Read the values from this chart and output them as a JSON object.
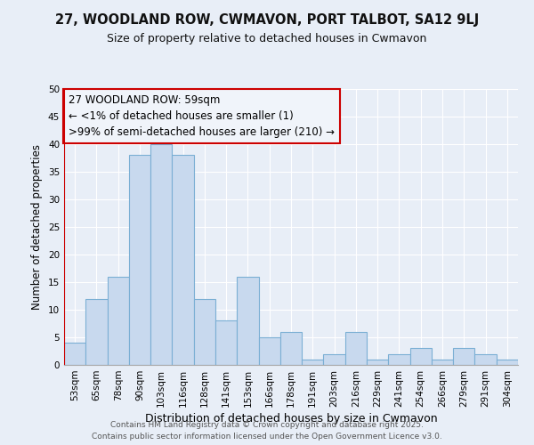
{
  "title1": "27, WOODLAND ROW, CWMAVON, PORT TALBOT, SA12 9LJ",
  "title2": "Size of property relative to detached houses in Cwmavon",
  "xlabel": "Distribution of detached houses by size in Cwmavon",
  "ylabel": "Number of detached properties",
  "categories": [
    "53sqm",
    "65sqm",
    "78sqm",
    "90sqm",
    "103sqm",
    "116sqm",
    "128sqm",
    "141sqm",
    "153sqm",
    "166sqm",
    "178sqm",
    "191sqm",
    "203sqm",
    "216sqm",
    "229sqm",
    "241sqm",
    "254sqm",
    "266sqm",
    "279sqm",
    "291sqm",
    "304sqm"
  ],
  "values": [
    4,
    12,
    16,
    38,
    40,
    38,
    12,
    8,
    16,
    5,
    6,
    1,
    2,
    6,
    1,
    2,
    3,
    1,
    3,
    2,
    1
  ],
  "bar_color": "#c8d9ee",
  "bar_edge_color": "#7bafd4",
  "annotation_text_line1": "27 WOODLAND ROW: 59sqm",
  "annotation_text_line2": "← <1% of detached houses are smaller (1)",
  "annotation_text_line3": ">99% of semi-detached houses are larger (210) →",
  "annotation_box_facecolor": "#f0f4fa",
  "annotation_box_edgecolor": "#cc0000",
  "reference_line_color": "#cc0000",
  "ylim": [
    0,
    50
  ],
  "yticks": [
    0,
    5,
    10,
    15,
    20,
    25,
    30,
    35,
    40,
    45,
    50
  ],
  "bg_color": "#e8eef7",
  "plot_bg_color": "#e8eef7",
  "footer_line1": "Contains HM Land Registry data © Crown copyright and database right 2025.",
  "footer_line2": "Contains public sector information licensed under the Open Government Licence v3.0.",
  "title1_fontsize": 10.5,
  "title2_fontsize": 9,
  "xlabel_fontsize": 9,
  "ylabel_fontsize": 8.5,
  "tick_fontsize": 7.5,
  "footer_fontsize": 6.5,
  "annotation_fontsize": 8.5
}
